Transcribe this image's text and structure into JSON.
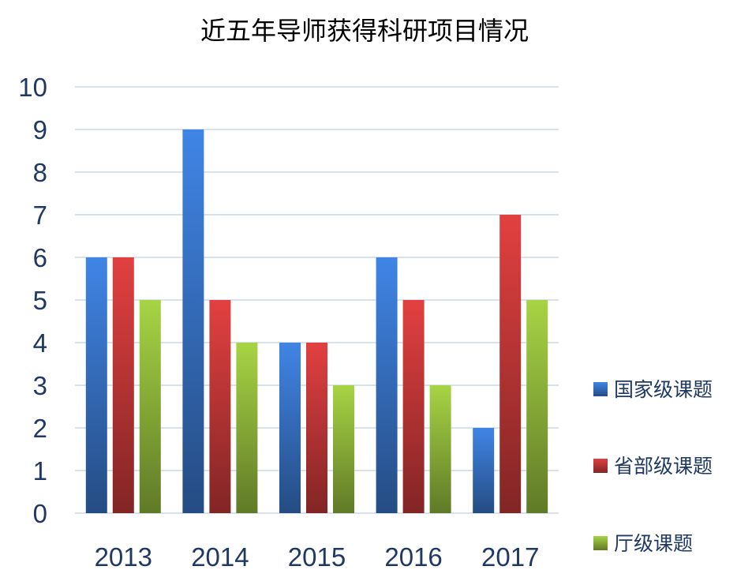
{
  "chart_data": {
    "type": "bar",
    "title": "近五年导师获得科研项目情况",
    "categories": [
      "2013",
      "2014",
      "2015",
      "2016",
      "2017"
    ],
    "series": [
      {
        "name": "国家级课题",
        "values": [
          6,
          9,
          4,
          6,
          2
        ],
        "color": "#3B7BD4"
      },
      {
        "name": "省部级课题",
        "values": [
          6,
          5,
          4,
          5,
          7
        ],
        "color": "#D13B3B"
      },
      {
        "name": "厅级课题",
        "values": [
          5,
          4,
          3,
          3,
          5
        ],
        "color": "#9BC43F"
      }
    ],
    "yticks": [
      "0",
      "1",
      "2",
      "3",
      "4",
      "5",
      "6",
      "7",
      "8",
      "9",
      "10"
    ],
    "ylim": [
      0,
      10
    ],
    "grid": true,
    "legend_position": "right"
  }
}
